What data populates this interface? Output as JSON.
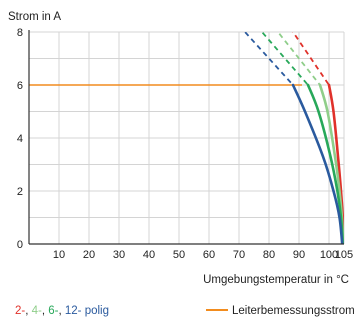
{
  "chart_data": {
    "type": "line",
    "ylabel": "Strom in A",
    "xlabel": "Umgebungstemperatur in °C",
    "xlim": [
      0,
      105
    ],
    "ylim": [
      0,
      8
    ],
    "x_ticks": [
      10,
      20,
      30,
      40,
      50,
      60,
      70,
      80,
      90,
      100,
      105
    ],
    "y_ticks": [
      0,
      2,
      4,
      6,
      8
    ],
    "grid": true,
    "rated_current": {
      "name": "Leiterbemessungsstrom",
      "value": 6,
      "color": "#f28c1e"
    },
    "series": [
      {
        "label": "2-",
        "color": "#e0312a",
        "dashed": [
          [
            82,
            9.0
          ],
          [
            100,
            6.0
          ]
        ],
        "solid": [
          [
            100,
            6.0
          ],
          [
            101.5,
            5.0
          ],
          [
            103,
            3.3
          ],
          [
            104,
            2.0
          ],
          [
            104.6,
            1.0
          ],
          [
            105,
            0
          ]
        ]
      },
      {
        "label": "4-",
        "color": "#8fce8a",
        "dashed": [
          [
            76,
            9.0
          ],
          [
            97,
            6.0
          ]
        ],
        "solid": [
          [
            97,
            6.0
          ],
          [
            99.5,
            5.0
          ],
          [
            102,
            3.3
          ],
          [
            103.5,
            2.0
          ],
          [
            104.3,
            1.0
          ],
          [
            104.8,
            0
          ]
        ]
      },
      {
        "label": "6-",
        "color": "#28a85a",
        "dashed": [
          [
            70,
            9.0
          ],
          [
            93,
            6.0
          ]
        ],
        "solid": [
          [
            93,
            6.0
          ],
          [
            96.5,
            5.0
          ],
          [
            100.5,
            3.3
          ],
          [
            102.8,
            2.0
          ],
          [
            104,
            1.0
          ],
          [
            104.6,
            0
          ]
        ]
      },
      {
        "label": "12-",
        "color": "#2a5a9e",
        "dashed": [
          [
            64,
            9.0
          ],
          [
            88,
            6.0
          ]
        ],
        "solid": [
          [
            88,
            6.0
          ],
          [
            92,
            5.0
          ],
          [
            98,
            3.3
          ],
          [
            101.5,
            2.0
          ],
          [
            103.5,
            1.0
          ],
          [
            104.4,
            0
          ]
        ]
      }
    ],
    "legend_suffix": "polig"
  }
}
